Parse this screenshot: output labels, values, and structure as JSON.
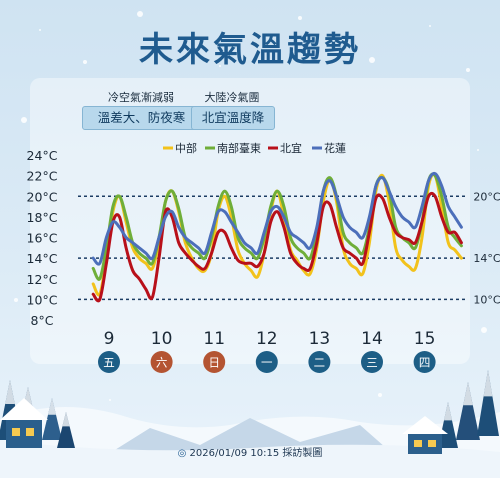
{
  "title": "未來氣溫趨勢",
  "notes": [
    {
      "top": "冷空氣漸減弱",
      "tag": "溫差大、防夜寒"
    },
    {
      "top": "大陸冷氣團",
      "tag": "北宜溫度降"
    }
  ],
  "footer": "2026/01/09 10:15 採訪製圖",
  "colors": {
    "yellow": "#f2c21b",
    "green": "#6fae39",
    "red": "#b8101a",
    "blue": "#4c6fba",
    "titleBlue": "#1f5b8f"
  },
  "chart_data": {
    "type": "line",
    "ylim": [
      8,
      24
    ],
    "yticks": [
      "24°C",
      "22°C",
      "20°C",
      "18°C",
      "16°C",
      "14°C",
      "12°C",
      "10°C",
      "8°C"
    ],
    "ref_lines": [
      {
        "value": 20,
        "label": "20°C"
      },
      {
        "value": 14,
        "label": "14°C"
      },
      {
        "value": 10,
        "label": "10°C"
      }
    ],
    "days": [
      {
        "date": "9",
        "weekday": "五",
        "color": "#1d5e86"
      },
      {
        "date": "10",
        "weekday": "六",
        "color": "#b45432"
      },
      {
        "date": "11",
        "weekday": "日",
        "color": "#b45432"
      },
      {
        "date": "12",
        "weekday": "一",
        "color": "#1d5e86"
      },
      {
        "date": "13",
        "weekday": "二",
        "color": "#1d5e86"
      },
      {
        "date": "14",
        "weekday": "三",
        "color": "#1d5e86"
      },
      {
        "date": "15",
        "weekday": "四",
        "color": "#1d5e86"
      }
    ],
    "points_per_day": 8,
    "x_start": 8.7,
    "series": [
      {
        "name": "中部",
        "color": "#f2c21b",
        "values": [
          11.5,
          10.5,
          14.0,
          18.5,
          20.0,
          17.5,
          15.0,
          14.0,
          13.5,
          13.0,
          15.5,
          19.5,
          20.5,
          18.5,
          15.5,
          14.0,
          13.0,
          12.8,
          14.5,
          18.5,
          20.0,
          18.0,
          14.8,
          13.5,
          12.8,
          12.2,
          14.5,
          18.5,
          20.5,
          18.0,
          14.8,
          13.8,
          12.8,
          12.5,
          15.0,
          19.5,
          21.5,
          19.5,
          15.0,
          13.5,
          13.0,
          12.5,
          15.5,
          20.5,
          22.0,
          19.5,
          15.0,
          13.8,
          13.2,
          13.0,
          16.0,
          21.0,
          22.0,
          19.0,
          15.5,
          14.8,
          14.0
        ]
      },
      {
        "name": "南部臺東",
        "color": "#6fae39",
        "values": [
          13.0,
          12.0,
          15.0,
          19.0,
          20.0,
          18.0,
          15.5,
          14.5,
          14.0,
          13.5,
          16.0,
          19.5,
          20.5,
          18.8,
          16.0,
          15.0,
          14.5,
          14.0,
          16.0,
          19.0,
          20.5,
          19.0,
          16.0,
          15.0,
          14.5,
          14.0,
          16.0,
          19.0,
          20.5,
          19.0,
          16.0,
          15.0,
          14.5,
          14.0,
          16.5,
          20.5,
          21.8,
          20.0,
          16.5,
          15.5,
          15.0,
          14.5,
          17.0,
          21.0,
          21.8,
          20.5,
          17.0,
          16.0,
          15.5,
          15.0,
          17.5,
          21.5,
          22.0,
          20.0,
          17.0,
          16.0,
          15.2
        ]
      },
      {
        "name": "北宜",
        "color": "#b8101a",
        "values": [
          10.5,
          10.0,
          13.5,
          17.5,
          18.0,
          15.0,
          12.8,
          12.0,
          11.0,
          10.2,
          14.0,
          18.5,
          18.0,
          15.5,
          14.5,
          13.8,
          13.2,
          13.0,
          14.5,
          16.5,
          16.5,
          15.0,
          13.8,
          13.5,
          13.5,
          13.2,
          14.5,
          17.5,
          18.5,
          17.0,
          14.5,
          13.5,
          13.0,
          13.0,
          15.5,
          19.0,
          19.2,
          17.0,
          15.0,
          14.5,
          14.0,
          13.5,
          16.5,
          19.8,
          19.8,
          18.0,
          16.5,
          16.0,
          15.8,
          15.5,
          17.5,
          20.0,
          20.0,
          18.0,
          16.5,
          16.5,
          15.5
        ]
      },
      {
        "name": "花蓮",
        "color": "#4c6fba",
        "values": [
          14.0,
          13.5,
          16.0,
          17.5,
          17.0,
          16.0,
          15.5,
          15.0,
          14.5,
          14.0,
          16.0,
          18.0,
          18.5,
          17.0,
          16.0,
          15.5,
          15.0,
          14.5,
          16.5,
          18.5,
          18.5,
          17.5,
          16.5,
          15.5,
          15.0,
          14.5,
          16.5,
          18.5,
          19.0,
          18.0,
          16.5,
          16.0,
          15.5,
          15.0,
          17.0,
          20.5,
          21.5,
          20.0,
          18.0,
          17.0,
          16.5,
          16.0,
          18.0,
          21.0,
          21.8,
          20.5,
          19.0,
          18.0,
          17.5,
          17.0,
          19.0,
          21.5,
          22.2,
          21.0,
          19.0,
          18.0,
          17.0
        ]
      }
    ]
  }
}
